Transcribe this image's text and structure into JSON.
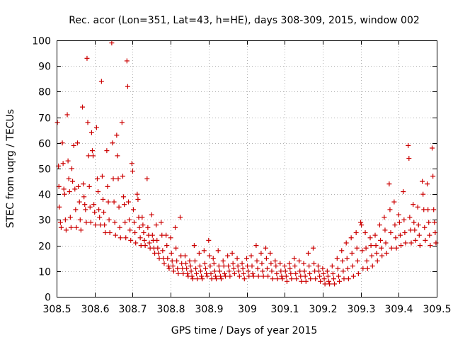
{
  "chart_data": {
    "type": "scatter",
    "title": "Rec. acor (Lon=351, Lat=43, h=HE), days 308-309, 2015, window 002",
    "xlabel": "GPS time / Days of year 2015",
    "ylabel": "STEC from uqrg / TECUs",
    "xlim": [
      308.5,
      309.5
    ],
    "ylim": [
      0,
      100
    ],
    "xticks": [
      308.5,
      308.6,
      308.7,
      308.8,
      308.9,
      309.0,
      309.1,
      309.2,
      309.3,
      309.4,
      309.5
    ],
    "xtick_labels": [
      "308.5",
      "308.6",
      "308.7",
      "308.8",
      "308.9",
      "309",
      "309.1",
      "309.2",
      "309.3",
      "309.4",
      "309.5"
    ],
    "yticks": [
      0,
      10,
      20,
      30,
      40,
      50,
      60,
      70,
      80,
      90,
      100
    ],
    "ytick_labels": [
      "0",
      "10",
      "20",
      "30",
      "40",
      "50",
      "60",
      "70",
      "80",
      "90",
      "100"
    ],
    "grid": true,
    "marker": "plus",
    "color": "#cc0000",
    "points": [
      [
        308.502,
        68
      ],
      [
        308.505,
        51
      ],
      [
        308.506,
        43
      ],
      [
        308.507,
        35
      ],
      [
        308.51,
        29
      ],
      [
        308.512,
        27
      ],
      [
        308.515,
        60
      ],
      [
        308.517,
        52
      ],
      [
        308.519,
        42
      ],
      [
        308.521,
        40
      ],
      [
        308.523,
        30
      ],
      [
        308.525,
        26
      ],
      [
        308.528,
        71
      ],
      [
        308.53,
        53
      ],
      [
        308.532,
        46
      ],
      [
        308.534,
        41
      ],
      [
        308.536,
        31
      ],
      [
        308.538,
        27
      ],
      [
        308.54,
        50
      ],
      [
        308.542,
        45
      ],
      [
        308.545,
        59
      ],
      [
        308.548,
        42
      ],
      [
        308.55,
        34
      ],
      [
        308.552,
        27
      ],
      [
        308.555,
        60
      ],
      [
        308.557,
        43
      ],
      [
        308.56,
        37
      ],
      [
        308.562,
        30
      ],
      [
        308.564,
        26
      ],
      [
        308.568,
        74
      ],
      [
        308.57,
        44
      ],
      [
        308.572,
        39
      ],
      [
        308.574,
        36
      ],
      [
        308.576,
        34
      ],
      [
        308.578,
        29
      ],
      [
        308.58,
        93
      ],
      [
        308.582,
        68
      ],
      [
        308.584,
        55
      ],
      [
        308.586,
        43
      ],
      [
        308.588,
        35
      ],
      [
        308.59,
        29
      ],
      [
        308.592,
        64
      ],
      [
        308.594,
        57
      ],
      [
        308.596,
        55
      ],
      [
        308.598,
        36
      ],
      [
        308.6,
        33
      ],
      [
        308.602,
        28
      ],
      [
        308.605,
        66
      ],
      [
        308.607,
        46
      ],
      [
        308.609,
        41
      ],
      [
        308.611,
        34
      ],
      [
        308.613,
        31
      ],
      [
        308.615,
        28
      ],
      [
        308.618,
        84
      ],
      [
        308.62,
        47
      ],
      [
        308.622,
        38
      ],
      [
        308.624,
        33
      ],
      [
        308.626,
        28
      ],
      [
        308.628,
        25
      ],
      [
        308.632,
        57
      ],
      [
        308.634,
        43
      ],
      [
        308.636,
        37
      ],
      [
        308.638,
        30
      ],
      [
        308.64,
        25
      ],
      [
        308.645,
        99
      ],
      [
        308.647,
        60
      ],
      [
        308.649,
        46
      ],
      [
        308.651,
        37
      ],
      [
        308.653,
        29
      ],
      [
        308.655,
        24
      ],
      [
        308.658,
        63
      ],
      [
        308.66,
        55
      ],
      [
        308.662,
        46
      ],
      [
        308.664,
        35
      ],
      [
        308.666,
        27
      ],
      [
        308.668,
        23
      ],
      [
        308.672,
        68
      ],
      [
        308.674,
        47
      ],
      [
        308.676,
        39
      ],
      [
        308.678,
        36
      ],
      [
        308.68,
        29
      ],
      [
        308.682,
        23
      ],
      [
        308.685,
        92
      ],
      [
        308.687,
        82
      ],
      [
        308.689,
        37
      ],
      [
        308.691,
        30
      ],
      [
        308.693,
        26
      ],
      [
        308.695,
        22
      ],
      [
        308.698,
        52
      ],
      [
        308.7,
        49
      ],
      [
        308.702,
        34
      ],
      [
        308.704,
        29
      ],
      [
        308.706,
        25
      ],
      [
        308.708,
        21
      ],
      [
        308.712,
        40
      ],
      [
        308.714,
        38
      ],
      [
        308.716,
        31
      ],
      [
        308.718,
        27
      ],
      [
        308.72,
        23
      ],
      [
        308.722,
        20
      ],
      [
        308.725,
        31
      ],
      [
        308.727,
        28
      ],
      [
        308.729,
        25
      ],
      [
        308.731,
        22
      ],
      [
        308.733,
        20
      ],
      [
        308.738,
        46
      ],
      [
        308.74,
        27
      ],
      [
        308.742,
        24
      ],
      [
        308.744,
        21
      ],
      [
        308.746,
        19
      ],
      [
        308.75,
        32
      ],
      [
        308.752,
        24
      ],
      [
        308.754,
        22
      ],
      [
        308.756,
        19
      ],
      [
        308.758,
        17
      ],
      [
        308.762,
        28
      ],
      [
        308.764,
        22
      ],
      [
        308.766,
        19
      ],
      [
        308.768,
        17
      ],
      [
        308.77,
        15
      ],
      [
        308.775,
        29
      ],
      [
        308.777,
        24
      ],
      [
        308.779,
        18
      ],
      [
        308.781,
        15
      ],
      [
        308.783,
        13
      ],
      [
        308.788,
        24
      ],
      [
        308.79,
        20
      ],
      [
        308.792,
        15
      ],
      [
        308.794,
        12
      ],
      [
        308.796,
        11
      ],
      [
        308.8,
        23
      ],
      [
        308.802,
        17
      ],
      [
        308.804,
        14
      ],
      [
        308.806,
        12
      ],
      [
        308.808,
        10
      ],
      [
        308.812,
        27
      ],
      [
        308.814,
        19
      ],
      [
        308.816,
        14
      ],
      [
        308.818,
        11
      ],
      [
        308.82,
        9
      ],
      [
        308.825,
        31
      ],
      [
        308.827,
        16
      ],
      [
        308.829,
        13
      ],
      [
        308.831,
        11
      ],
      [
        308.833,
        9
      ],
      [
        308.838,
        16
      ],
      [
        308.84,
        13
      ],
      [
        308.842,
        11
      ],
      [
        308.844,
        9
      ],
      [
        308.846,
        8
      ],
      [
        308.85,
        14
      ],
      [
        308.852,
        12
      ],
      [
        308.854,
        10
      ],
      [
        308.856,
        8
      ],
      [
        308.858,
        7
      ],
      [
        308.862,
        20
      ],
      [
        308.864,
        14
      ],
      [
        308.866,
        11
      ],
      [
        308.868,
        9
      ],
      [
        308.87,
        7
      ],
      [
        308.875,
        17
      ],
      [
        308.877,
        12
      ],
      [
        308.879,
        10
      ],
      [
        308.881,
        8
      ],
      [
        308.883,
        7
      ],
      [
        308.888,
        18
      ],
      [
        308.89,
        13
      ],
      [
        308.892,
        11
      ],
      [
        308.894,
        9
      ],
      [
        308.896,
        8
      ],
      [
        308.9,
        22
      ],
      [
        308.902,
        16
      ],
      [
        308.904,
        12
      ],
      [
        308.906,
        9
      ],
      [
        308.908,
        7
      ],
      [
        308.912,
        15
      ],
      [
        308.914,
        13
      ],
      [
        308.916,
        10
      ],
      [
        308.918,
        8
      ],
      [
        308.92,
        7
      ],
      [
        308.925,
        18
      ],
      [
        308.927,
        12
      ],
      [
        308.929,
        10
      ],
      [
        308.931,
        8
      ],
      [
        308.933,
        7
      ],
      [
        308.938,
        14
      ],
      [
        308.94,
        12
      ],
      [
        308.942,
        9
      ],
      [
        308.944,
        8
      ],
      [
        308.95,
        16
      ],
      [
        308.952,
        12
      ],
      [
        308.954,
        10
      ],
      [
        308.956,
        8
      ],
      [
        308.962,
        17
      ],
      [
        308.964,
        13
      ],
      [
        308.966,
        11
      ],
      [
        308.968,
        9
      ],
      [
        308.975,
        15
      ],
      [
        308.977,
        12
      ],
      [
        308.979,
        10
      ],
      [
        308.981,
        8
      ],
      [
        308.988,
        13
      ],
      [
        308.99,
        11
      ],
      [
        308.992,
        9
      ],
      [
        308.994,
        7
      ],
      [
        309.0,
        15
      ],
      [
        309.002,
        12
      ],
      [
        309.004,
        10
      ],
      [
        309.006,
        8
      ],
      [
        309.012,
        16
      ],
      [
        309.014,
        12
      ],
      [
        309.016,
        9
      ],
      [
        309.018,
        8
      ],
      [
        309.025,
        20
      ],
      [
        309.027,
        14
      ],
      [
        309.029,
        11
      ],
      [
        309.031,
        8
      ],
      [
        309.038,
        17
      ],
      [
        309.04,
        13
      ],
      [
        309.042,
        10
      ],
      [
        309.044,
        8
      ],
      [
        309.05,
        19
      ],
      [
        309.052,
        15
      ],
      [
        309.054,
        11
      ],
      [
        309.056,
        8
      ],
      [
        309.062,
        17
      ],
      [
        309.064,
        13
      ],
      [
        309.066,
        10
      ],
      [
        309.068,
        7
      ],
      [
        309.075,
        14
      ],
      [
        309.077,
        12
      ],
      [
        309.079,
        9
      ],
      [
        309.081,
        7
      ],
      [
        309.088,
        13
      ],
      [
        309.09,
        10
      ],
      [
        309.092,
        8
      ],
      [
        309.094,
        7
      ],
      [
        309.1,
        12
      ],
      [
        309.102,
        10
      ],
      [
        309.104,
        8
      ],
      [
        309.106,
        6
      ],
      [
        309.112,
        13
      ],
      [
        309.114,
        11
      ],
      [
        309.116,
        9
      ],
      [
        309.118,
        7
      ],
      [
        309.125,
        15
      ],
      [
        309.127,
        12
      ],
      [
        309.129,
        9
      ],
      [
        309.131,
        7
      ],
      [
        309.138,
        14
      ],
      [
        309.14,
        10
      ],
      [
        309.142,
        8
      ],
      [
        309.144,
        6
      ],
      [
        309.15,
        13
      ],
      [
        309.152,
        10
      ],
      [
        309.154,
        8
      ],
      [
        309.156,
        6
      ],
      [
        309.162,
        17
      ],
      [
        309.164,
        12
      ],
      [
        309.166,
        9
      ],
      [
        309.168,
        7
      ],
      [
        309.175,
        19
      ],
      [
        309.177,
        13
      ],
      [
        309.179,
        10
      ],
      [
        309.181,
        7
      ],
      [
        309.188,
        12
      ],
      [
        309.19,
        10
      ],
      [
        309.192,
        8
      ],
      [
        309.194,
        6
      ],
      [
        309.2,
        11
      ],
      [
        309.202,
        9
      ],
      [
        309.204,
        7
      ],
      [
        309.206,
        5
      ],
      [
        309.212,
        10
      ],
      [
        309.214,
        8
      ],
      [
        309.216,
        6
      ],
      [
        309.218,
        5
      ],
      [
        309.225,
        12
      ],
      [
        309.227,
        9
      ],
      [
        309.229,
        7
      ],
      [
        309.231,
        5
      ],
      [
        309.238,
        15
      ],
      [
        309.24,
        11
      ],
      [
        309.242,
        8
      ],
      [
        309.244,
        6
      ],
      [
        309.25,
        18
      ],
      [
        309.252,
        14
      ],
      [
        309.254,
        10
      ],
      [
        309.256,
        7
      ],
      [
        309.262,
        21
      ],
      [
        309.264,
        15
      ],
      [
        309.266,
        11
      ],
      [
        309.268,
        7
      ],
      [
        309.275,
        23
      ],
      [
        309.277,
        17
      ],
      [
        309.279,
        12
      ],
      [
        309.281,
        8
      ],
      [
        309.288,
        25
      ],
      [
        309.29,
        19
      ],
      [
        309.292,
        14
      ],
      [
        309.294,
        9
      ],
      [
        309.3,
        29
      ],
      [
        309.302,
        28
      ],
      [
        309.304,
        18
      ],
      [
        309.306,
        11
      ],
      [
        309.312,
        25
      ],
      [
        309.314,
        19
      ],
      [
        309.316,
        14
      ],
      [
        309.318,
        11
      ],
      [
        309.325,
        23
      ],
      [
        309.327,
        20
      ],
      [
        309.329,
        16
      ],
      [
        309.331,
        12
      ],
      [
        309.338,
        24
      ],
      [
        309.34,
        20
      ],
      [
        309.342,
        17
      ],
      [
        309.344,
        14
      ],
      [
        309.35,
        28
      ],
      [
        309.352,
        22
      ],
      [
        309.354,
        19
      ],
      [
        309.356,
        16
      ],
      [
        309.362,
        31
      ],
      [
        309.364,
        26
      ],
      [
        309.366,
        21
      ],
      [
        309.368,
        17
      ],
      [
        309.375,
        44
      ],
      [
        309.377,
        34
      ],
      [
        309.379,
        25
      ],
      [
        309.381,
        19
      ],
      [
        309.388,
        37
      ],
      [
        309.39,
        28
      ],
      [
        309.392,
        23
      ],
      [
        309.394,
        19
      ],
      [
        309.4,
        32
      ],
      [
        309.402,
        29
      ],
      [
        309.404,
        24
      ],
      [
        309.406,
        20
      ],
      [
        309.412,
        41
      ],
      [
        309.414,
        30
      ],
      [
        309.416,
        25
      ],
      [
        309.418,
        21
      ],
      [
        309.425,
        59
      ],
      [
        309.427,
        54
      ],
      [
        309.429,
        31
      ],
      [
        309.431,
        26
      ],
      [
        309.433,
        21
      ],
      [
        309.438,
        36
      ],
      [
        309.44,
        29
      ],
      [
        309.442,
        26
      ],
      [
        309.444,
        22
      ],
      [
        309.45,
        35
      ],
      [
        309.452,
        28
      ],
      [
        309.454,
        24
      ],
      [
        309.456,
        20
      ],
      [
        309.462,
        45
      ],
      [
        309.464,
        40
      ],
      [
        309.466,
        34
      ],
      [
        309.468,
        27
      ],
      [
        309.47,
        22
      ],
      [
        309.475,
        44
      ],
      [
        309.477,
        34
      ],
      [
        309.479,
        29
      ],
      [
        309.481,
        24
      ],
      [
        309.483,
        20
      ],
      [
        309.488,
        58
      ],
      [
        309.49,
        47
      ],
      [
        309.492,
        34
      ],
      [
        309.494,
        29
      ],
      [
        309.496,
        25
      ],
      [
        309.498,
        21
      ]
    ]
  }
}
